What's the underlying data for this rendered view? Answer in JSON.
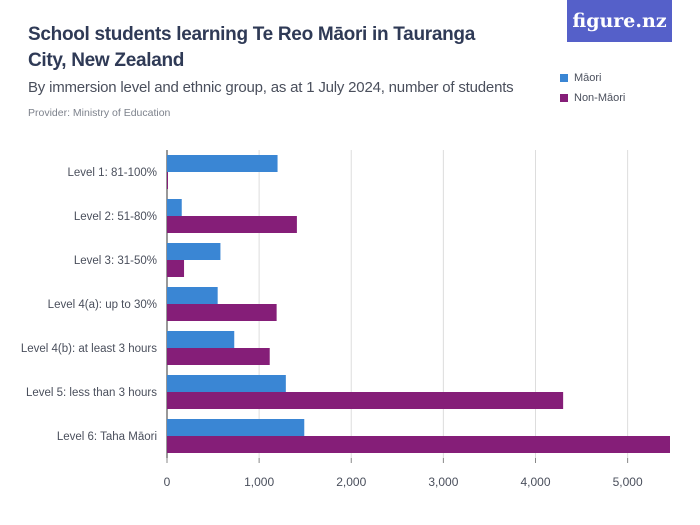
{
  "title": "School students learning Te Reo Māori in Tauranga City, New Zealand",
  "subtitle": "By immersion level and ethnic group, as at 1 July 2024, number of students",
  "provider": "Provider: Ministry of Education",
  "logo_text": "figure.nz",
  "colors": {
    "maori": "#3a86d4",
    "non_maori": "#851e78",
    "grid": "#dddddd",
    "axis_text": "#4a4f5c"
  },
  "legend": [
    {
      "label": "Māori",
      "color": "#3a86d4"
    },
    {
      "label": "Non-Māori",
      "color": "#851e78"
    }
  ],
  "chart_data": {
    "type": "bar",
    "orientation": "horizontal",
    "categories": [
      "Level 1: 81-100%",
      "Level 2: 51-80%",
      "Level 3: 31-50%",
      "Level 4(a): up to 30%",
      "Level 4(b): at least 3 hours",
      "Level 5: less than 3 hours",
      "Level 6: Taha Māori"
    ],
    "series": [
      {
        "name": "Māori",
        "values": [
          1200,
          160,
          580,
          550,
          730,
          1290,
          1490
        ]
      },
      {
        "name": "Non-Māori",
        "values": [
          10,
          1410,
          185,
          1190,
          1115,
          4300,
          5460
        ]
      }
    ],
    "xlim": [
      0,
      5460
    ],
    "xticks": [
      0,
      1000,
      2000,
      3000,
      4000,
      5000
    ],
    "xtick_labels": [
      "0",
      "1,000",
      "2,000",
      "3,000",
      "4,000",
      "5,000"
    ],
    "grid": true,
    "legend_position": "top-right"
  }
}
